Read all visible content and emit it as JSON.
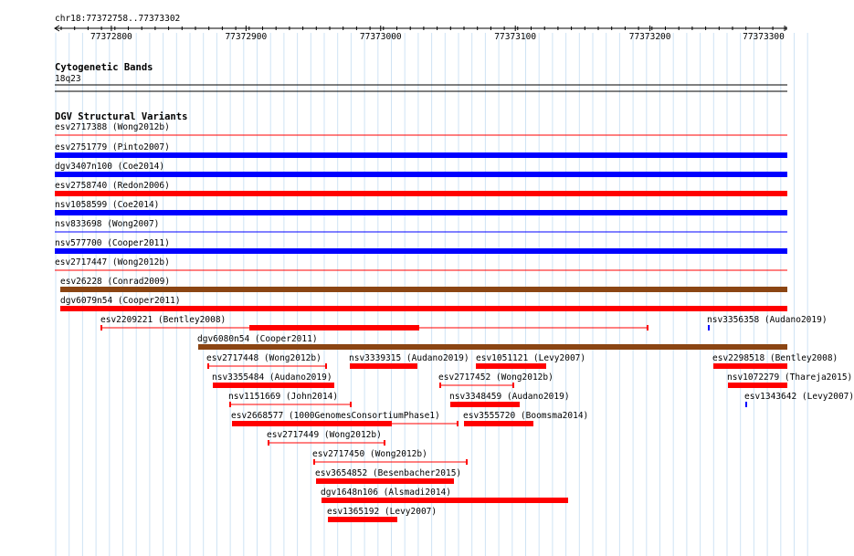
{
  "ruler": {
    "region": "chr18:77372758..77373302",
    "ticks": [
      "77372800",
      "77372900",
      "77373000",
      "77373100",
      "77373200",
      "77373300"
    ],
    "tick_positions": [
      77372800,
      77372900,
      77373000,
      77373100,
      77373200,
      77373300
    ]
  },
  "cytoband": {
    "title": "Cytogenetic Bands",
    "band": "18q23"
  },
  "dgv": {
    "title": "DGV Structural Variants",
    "colors": {
      "loss": "#ff0000",
      "gain": "#0000ff",
      "complex": "#8b4513"
    },
    "rows": [
      {
        "label": "esv2717388 (Wong2012b)",
        "type": "loss",
        "style": "thin"
      },
      {
        "label": "esv2751779 (Pinto2007)",
        "type": "gain",
        "style": "thick"
      },
      {
        "label": "dgv3407n100 (Coe2014)",
        "type": "gain",
        "style": "thick"
      },
      {
        "label": "esv2758740 (Redon2006)",
        "type": "loss",
        "style": "thick"
      },
      {
        "label": "nsv1058599 (Coe2014)",
        "type": "gain",
        "style": "thick"
      },
      {
        "label": "nsv833698 (Wong2007)",
        "type": "gain",
        "style": "thin"
      },
      {
        "label": "nsv577700 (Cooper2011)",
        "type": "gain",
        "style": "thick"
      },
      {
        "label": "esv2717447 (Wong2012b)",
        "type": "loss",
        "style": "thin"
      },
      {
        "label": "esv26228 (Conrad2009)",
        "type": "complex",
        "style": "thick"
      },
      {
        "label": "dgv6079n54 (Cooper2011)",
        "type": "loss",
        "style": "thick"
      }
    ],
    "features": [
      {
        "label": "esv2209221 (Bentley2008)",
        "type": "loss"
      },
      {
        "label": "nsv3356358 (Audano2019)",
        "type": "gain"
      },
      {
        "label": "dgv6080n54 (Cooper2011)",
        "type": "complex"
      },
      {
        "label": "esv2717448 (Wong2012b)",
        "type": "loss"
      },
      {
        "label": "nsv3339315 (Audano2019)",
        "type": "loss"
      },
      {
        "label": "esv1051121 (Levy2007)",
        "type": "loss"
      },
      {
        "label": "esv2298518 (Bentley2008)",
        "type": "loss"
      },
      {
        "label": "nsv3355484 (Audano2019)",
        "type": "loss"
      },
      {
        "label": "esv2717452 (Wong2012b)",
        "type": "loss"
      },
      {
        "label": "nsv1072279 (Thareja2015)",
        "type": "loss"
      },
      {
        "label": "nsv1151669 (John2014)",
        "type": "loss"
      },
      {
        "label": "nsv3348459 (Audano2019)",
        "type": "loss"
      },
      {
        "label": "esv1343642 (Levy2007)",
        "type": "gain"
      },
      {
        "label": "esv2668577 (1000GenomesConsortiumPhase1)",
        "type": "loss"
      },
      {
        "label": "esv3555720 (Boomsma2014)",
        "type": "loss"
      },
      {
        "label": "esv2717449 (Wong2012b)",
        "type": "loss"
      },
      {
        "label": "esv2717450 (Wong2012b)",
        "type": "loss"
      },
      {
        "label": "esv3654852 (Besenbacher2015)",
        "type": "loss"
      },
      {
        "label": "dgv1648n106 (Alsmadi2014)",
        "type": "loss"
      },
      {
        "label": "esv1365192 (Levy2007)",
        "type": "loss"
      }
    ]
  }
}
